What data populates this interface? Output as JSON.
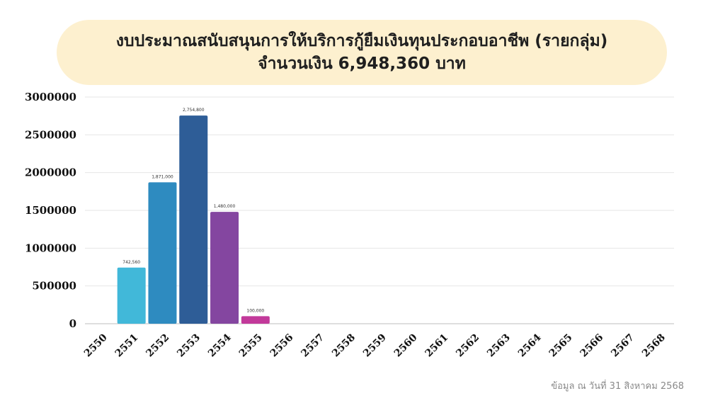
{
  "chart_data": {
    "type": "bar",
    "title": "งบประมาณสนับสนุนการให้บริการกู้ยืมเงินทุนประกอบอาชีพ (รายกลุ่ม)",
    "subtitle": "จำนวนเงิน 6,948,360 บาท",
    "categories": [
      "2550",
      "2551",
      "2552",
      "2553",
      "2554",
      "2555",
      "2556",
      "2557",
      "2558",
      "2559",
      "2560",
      "2561",
      "2562",
      "2563",
      "2564",
      "2565",
      "2566",
      "2567",
      "2568"
    ],
    "values": [
      0,
      742560,
      1871000,
      2754800,
      1480000,
      100000,
      0,
      0,
      0,
      0,
      0,
      0,
      0,
      0,
      0,
      0,
      0,
      0,
      0
    ],
    "data_labels": [
      "",
      "742,560",
      "1,871,000",
      "2,754,800",
      "1,480,000",
      "100,000",
      "",
      "",
      "",
      "",
      "",
      "",
      "",
      "",
      "",
      "",
      "",
      "",
      ""
    ],
    "bar_colors": [
      "#41b8d9",
      "#41b8d9",
      "#2e8bc0",
      "#2e5d97",
      "#8446a0",
      "#c2399a"
    ],
    "ylim": [
      0,
      3000000
    ],
    "yticks": [
      "0",
      "500000",
      "1000000",
      "1500000",
      "2000000",
      "2500000",
      "3000000"
    ],
    "grid": true,
    "xlabel": "",
    "ylabel": ""
  },
  "footer": "ข้อมูล ณ วันที่ 31 สิงหาคม 2568"
}
